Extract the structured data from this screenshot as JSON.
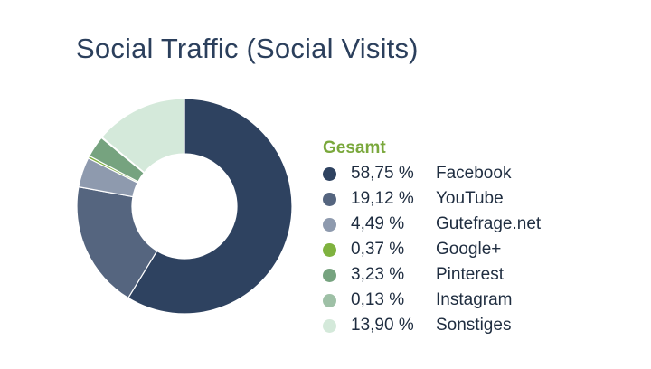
{
  "chart_data": {
    "type": "pie",
    "title": "Social Traffic (Social Visits)",
    "legend_title": "Gesamt",
    "legend_position": "right",
    "slices": [
      {
        "label": "Facebook",
        "value": 58.75,
        "display": "58,75 %",
        "color": "#2e4260"
      },
      {
        "label": "YouTube",
        "value": 19.12,
        "display": "19,12 %",
        "color": "#55657f"
      },
      {
        "label": "Gutefrage.net",
        "value": 4.49,
        "display": "4,49 %",
        "color": "#8e9aae"
      },
      {
        "label": "Google+",
        "value": 0.37,
        "display": "0,37 %",
        "color": "#7fb23f"
      },
      {
        "label": "Pinterest",
        "value": 3.23,
        "display": "3,23 %",
        "color": "#76a37f"
      },
      {
        "label": "Instagram",
        "value": 0.13,
        "display": "0,13 %",
        "color": "#9ec0a6"
      },
      {
        "label": "Sonstiges",
        "value": 13.9,
        "display": "13,90 %",
        "color": "#d4e9da"
      }
    ]
  }
}
